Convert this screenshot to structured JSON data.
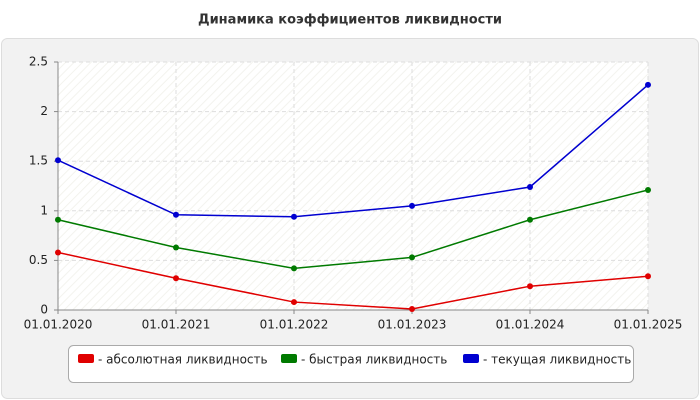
{
  "chart_data": {
    "type": "line",
    "title": "Динамика коэффициентов ликвидности",
    "categories": [
      "01.01.2020",
      "01.01.2021",
      "01.01.2022",
      "01.01.2023",
      "01.01.2024",
      "01.01.2025"
    ],
    "series": [
      {
        "name": "- абсолютная ликвидность",
        "color": "#e00000",
        "values": [
          0.58,
          0.32,
          0.08,
          0.01,
          0.24,
          0.34
        ]
      },
      {
        "name": "- быстрая ликвидность",
        "color": "#007a00",
        "values": [
          0.91,
          0.63,
          0.42,
          0.53,
          0.91,
          1.21
        ]
      },
      {
        "name": "- текущая ликвидность",
        "color": "#0000d0",
        "values": [
          1.51,
          0.96,
          0.94,
          1.05,
          1.24,
          2.27
        ]
      }
    ],
    "ylim": [
      0,
      2.5
    ],
    "yticks": [
      0,
      0.5,
      1,
      1.5,
      2,
      2.5
    ],
    "grid": true
  }
}
